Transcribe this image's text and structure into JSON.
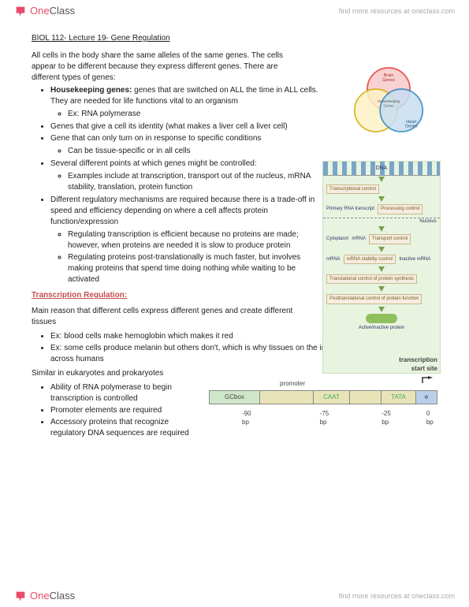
{
  "brand": {
    "one": "One",
    "class": "Class",
    "tagline": "find more resources at oneclass.com"
  },
  "doc": {
    "title": "BIOL 112- Lecture 19- Gene Regulation",
    "intro": "All cells in the body share the same alleles of the same genes. The cells appear to be different because they express different genes. There are different types of genes:",
    "bullets": [
      {
        "html": "<b>Housekeeping genes:</b> genes that are switched on ALL the time in ALL cells. They are needed for life functions vital to an organism",
        "sub": [
          "Ex: RNA polymerase"
        ]
      },
      {
        "text": "Genes that give a cell its identity (what makes a liver cell a liver cell)"
      },
      {
        "text": "Gene that can only turn on in response to specific conditions",
        "sub": [
          "Can be tissue-specific or in all cells"
        ]
      },
      {
        "text": "Several different points at which genes might be controlled:",
        "sub": [
          "Examples include at transcription, transport out of the nucleus, mRNA stability, translation, protein function"
        ]
      },
      {
        "text": "Different regulatory mechanisms are required because there is a trade-off in speed and efficiency depending on where a cell affects protein function/expression",
        "sub": [
          "Regulating transcription is efficient because no proteins are made; however, when proteins are needed it is slow to produce protein",
          "Regulating proteins post-translationally is much faster, but involves making proteins that spend time doing nothing while waiting to be activated"
        ]
      }
    ],
    "section2_head": "Transcription Regulation:",
    "section2_para": "Main reason that different cells express different genes and create different tissues",
    "section2_bullets": [
      "Ex: blood cells make hemoglobin which makes it red",
      "Ex: some cells produce melanin but others don't, which is why tissues on the inside are the same color across humans"
    ],
    "section3_para": "Similar in eukaryotes and prokaryotes",
    "section3_bullets": [
      "Ability of RNA polymerase to begin transcription is controlled",
      "Promoter elements are required",
      "Accessory proteins that recognize regulatory DNA sequences are required"
    ]
  },
  "venn": {
    "labels": {
      "top": "Brain Genes",
      "left": "Housekeeping Genes",
      "right": "Heart Genes",
      "center": "Housekeeping Genes"
    },
    "colors": {
      "a": "#e53935",
      "b": "#f4d03f",
      "c": "#2e86c1",
      "fill_a": "#f8c9c9",
      "fill_b": "#fdf3c7",
      "fill_c": "#c8dff2"
    }
  },
  "flow": {
    "dna": "DNA",
    "steps": [
      {
        "left": "",
        "box": "Transcriptional control"
      },
      {
        "left": "Primary RNA transcript",
        "box": "Processing control",
        "divider": "Nucleus"
      },
      {
        "left": "mRNA",
        "box": "Transport control",
        "region": "Cytoplasm"
      },
      {
        "left": "mRNA",
        "box": "mRNA stability control",
        "right": "Inactive mRNA"
      },
      {
        "left": "",
        "box": "Translational control of protein synthesis"
      },
      {
        "left": "",
        "box": "Posttranslational control of protein function"
      },
      {
        "left": "",
        "box": "",
        "final": "Active/inactive protein"
      }
    ]
  },
  "promoter": {
    "tss1": "transcription",
    "tss2": "start site",
    "label": "promoter",
    "boxes": {
      "gc": "GCbox",
      "caat": "CAAT",
      "tata": "TATA",
      "e": "e"
    },
    "bp": [
      "-90 bp",
      "-75 bp",
      "-25 bp",
      "0 bp"
    ]
  }
}
